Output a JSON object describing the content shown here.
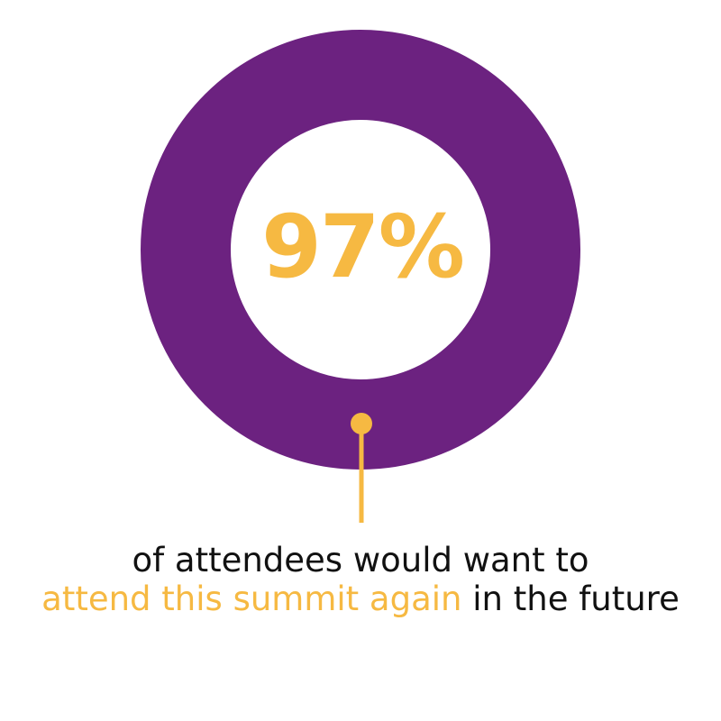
{
  "chart_data": {
    "type": "pie",
    "values": [
      97
    ],
    "value_label": "97%",
    "caption": {
      "before": "of attendees would want to",
      "highlight": "attend this summit again",
      "after": "in the future"
    }
  },
  "colors": {
    "ring": "#6c2280",
    "accent": "#f6b942",
    "text": "#111111",
    "background": "#ffffff"
  }
}
